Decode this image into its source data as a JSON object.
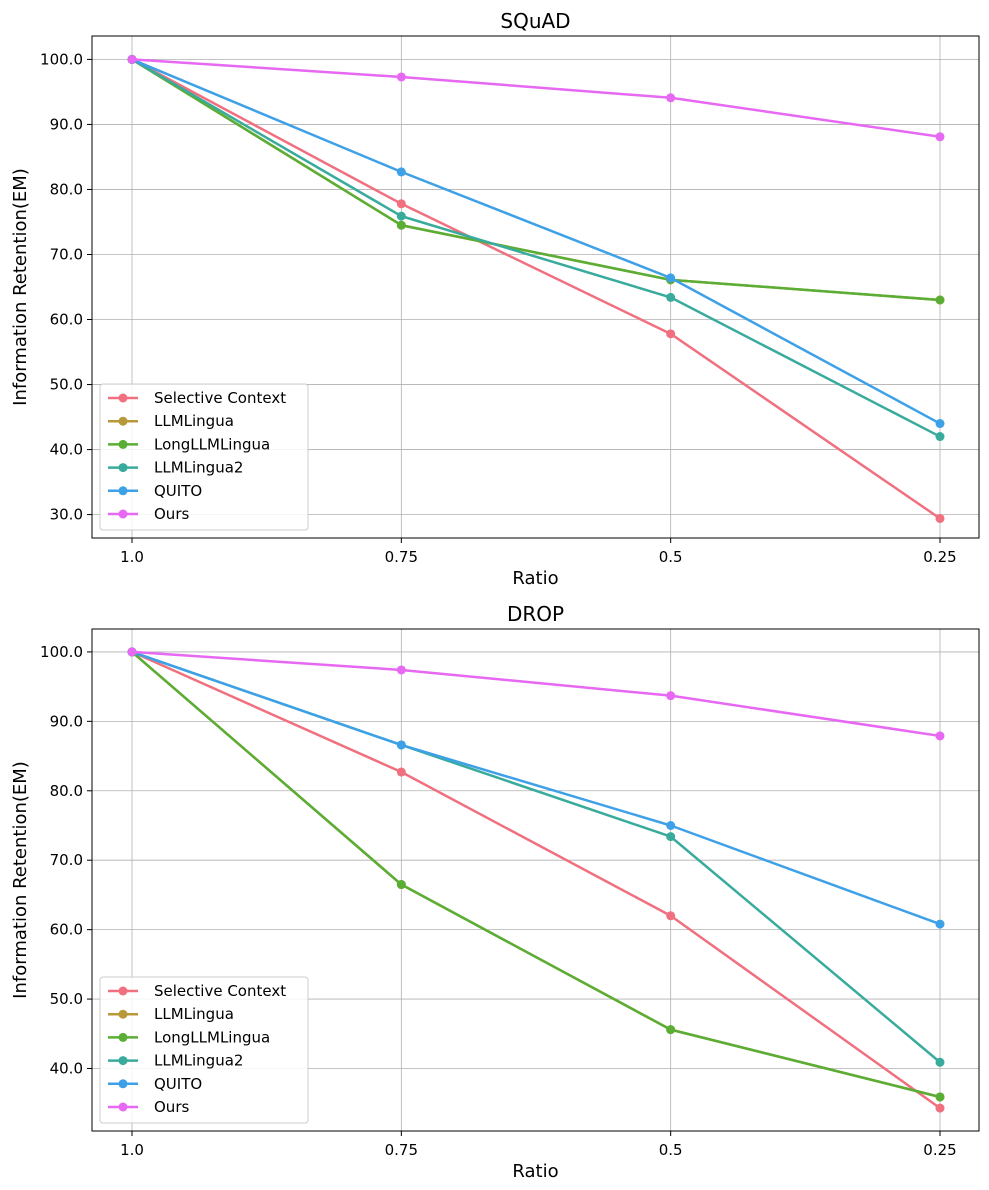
{
  "chart_data": [
    {
      "type": "line",
      "title": "SQuAD",
      "xlabel": "Ratio",
      "ylabel": "Information Retention(EM)",
      "categories": [
        "1.0",
        "0.75",
        "0.5",
        "0.25"
      ],
      "ylim": [
        26.4,
        103.6
      ],
      "yticks": [
        30,
        40,
        50,
        60,
        70,
        80,
        90,
        100
      ],
      "ytick_labels": [
        "30.0",
        "40.0",
        "50.0",
        "60.0",
        "70.0",
        "80.0",
        "90.0",
        "100.0"
      ],
      "grid": true,
      "legend_position": "lower-left",
      "series": [
        {
          "name": "Selective Context",
          "color": "#f0707f",
          "values": [
            100.0,
            77.8,
            57.8,
            29.4
          ]
        },
        {
          "name": "LLMLingua",
          "color": "#b8993a",
          "values": [
            100.0,
            74.5,
            66.1,
            63.0
          ]
        },
        {
          "name": "LongLLMLingua",
          "color": "#5aae35",
          "values": [
            100.0,
            74.5,
            66.1,
            63.0
          ]
        },
        {
          "name": "LLMLingua2",
          "color": "#39ab9d",
          "values": [
            100.0,
            75.9,
            63.4,
            42.0
          ]
        },
        {
          "name": "QUITO",
          "color": "#3ea1e8",
          "values": [
            100.0,
            82.7,
            66.4,
            44.0
          ]
        },
        {
          "name": "Ours",
          "color": "#e768f2",
          "values": [
            100.0,
            97.3,
            94.1,
            88.1
          ]
        }
      ]
    },
    {
      "type": "line",
      "title": "DROP",
      "xlabel": "Ratio",
      "ylabel": "Information Retention(EM)",
      "categories": [
        "1.0",
        "0.75",
        "0.5",
        "0.25"
      ],
      "ylim": [
        31.0,
        103.3
      ],
      "yticks": [
        40,
        50,
        60,
        70,
        80,
        90,
        100
      ],
      "ytick_labels": [
        "40.0",
        "50.0",
        "60.0",
        "70.0",
        "80.0",
        "90.0",
        "100.0"
      ],
      "grid": true,
      "legend_position": "lower-left",
      "series": [
        {
          "name": "Selective Context",
          "color": "#f0707f",
          "values": [
            100.0,
            82.7,
            62.0,
            34.3
          ]
        },
        {
          "name": "LLMLingua",
          "color": "#b8993a",
          "values": [
            100.0,
            66.5,
            45.6,
            35.9
          ]
        },
        {
          "name": "LongLLMLingua",
          "color": "#5aae35",
          "values": [
            100.0,
            66.5,
            45.6,
            35.9
          ]
        },
        {
          "name": "LLMLingua2",
          "color": "#39ab9d",
          "values": [
            100.0,
            86.6,
            73.4,
            40.9
          ]
        },
        {
          "name": "QUITO",
          "color": "#3ea1e8",
          "values": [
            100.0,
            86.6,
            75.0,
            60.8
          ]
        },
        {
          "name": "Ours",
          "color": "#e768f2",
          "values": [
            100.0,
            97.4,
            93.7,
            87.9
          ]
        }
      ]
    }
  ]
}
